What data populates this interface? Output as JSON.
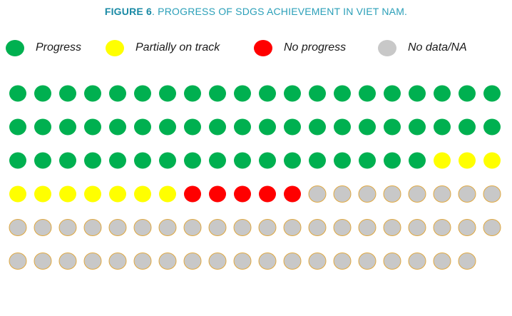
{
  "figure": {
    "label": "FIGURE 6",
    "title": ". PROGRESS OF SDGS ACHIEVEMENT IN VIET NAM."
  },
  "legend": [
    {
      "key": "progress",
      "label": "Progress",
      "color": "#00b050"
    },
    {
      "key": "partial",
      "label": "Partially on track",
      "color": "#ffff00"
    },
    {
      "key": "none",
      "label": "No progress",
      "color": "#ff0000"
    },
    {
      "key": "na",
      "label": "No data/NA",
      "color": "#c8c8c8"
    }
  ],
  "chart_data": {
    "type": "dot-matrix",
    "columns": 20,
    "categories": [
      "Progress",
      "Partially on track",
      "No progress",
      "No data/NA"
    ],
    "values": [
      57,
      10,
      5,
      47
    ],
    "total": 119,
    "colors": [
      "#00b050",
      "#ffff00",
      "#ff0000",
      "#c8c8c8"
    ],
    "outline_color": "#e0a840"
  }
}
